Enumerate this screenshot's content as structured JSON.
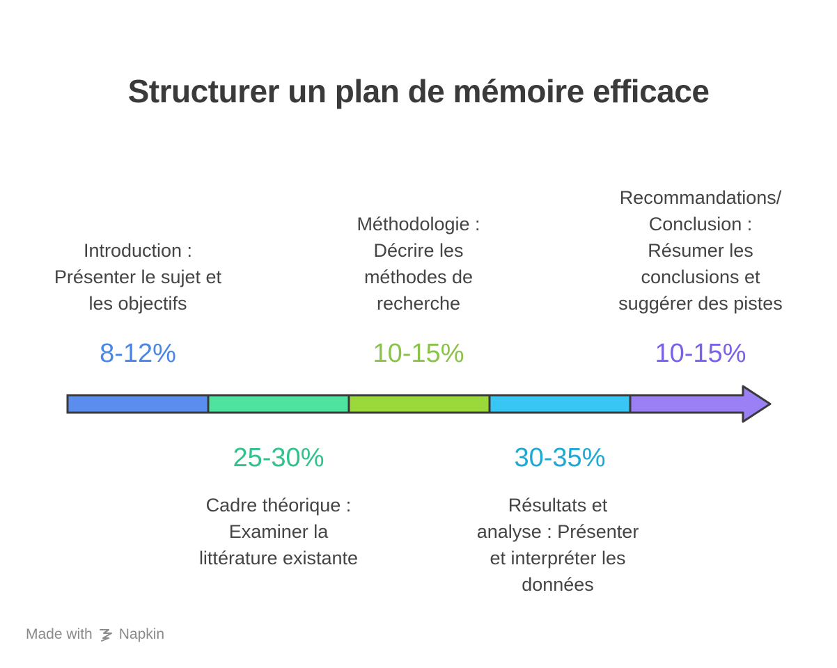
{
  "title": "Structurer un plan de mémoire efficace",
  "stages": [
    {
      "label": "Introduction :\nPrésenter le sujet et\nles objectifs",
      "percent": "8-12%",
      "color": "#4a86e8",
      "bar_color": "#5b8def",
      "position": "top"
    },
    {
      "label": "Cadre théorique :\nExaminer la\nlittérature existante",
      "percent": "25-30%",
      "color": "#2fc28a",
      "bar_color": "#4fe3a0",
      "position": "bottom"
    },
    {
      "label": "Méthodologie :\nDécrire les\nméthodes de\nrecherche",
      "percent": "10-15%",
      "color": "#8bc34a",
      "bar_color": "#9bd83a",
      "position": "top"
    },
    {
      "label": "Résultats et\nanalyse : Présenter\net interpréter les\ndonnées",
      "percent": "30-35%",
      "color": "#1ca9d6",
      "bar_color": "#38c6f4",
      "position": "bottom"
    },
    {
      "label": "Recommandations/\nConclusion :\nRésumer les\nconclusions et\nsuggérer des pistes",
      "percent": "10-15%",
      "color": "#7b61e8",
      "bar_color": "#9b7ff5",
      "position": "top"
    }
  ],
  "footer": {
    "made_with": "Made with",
    "brand": "Napkin"
  }
}
